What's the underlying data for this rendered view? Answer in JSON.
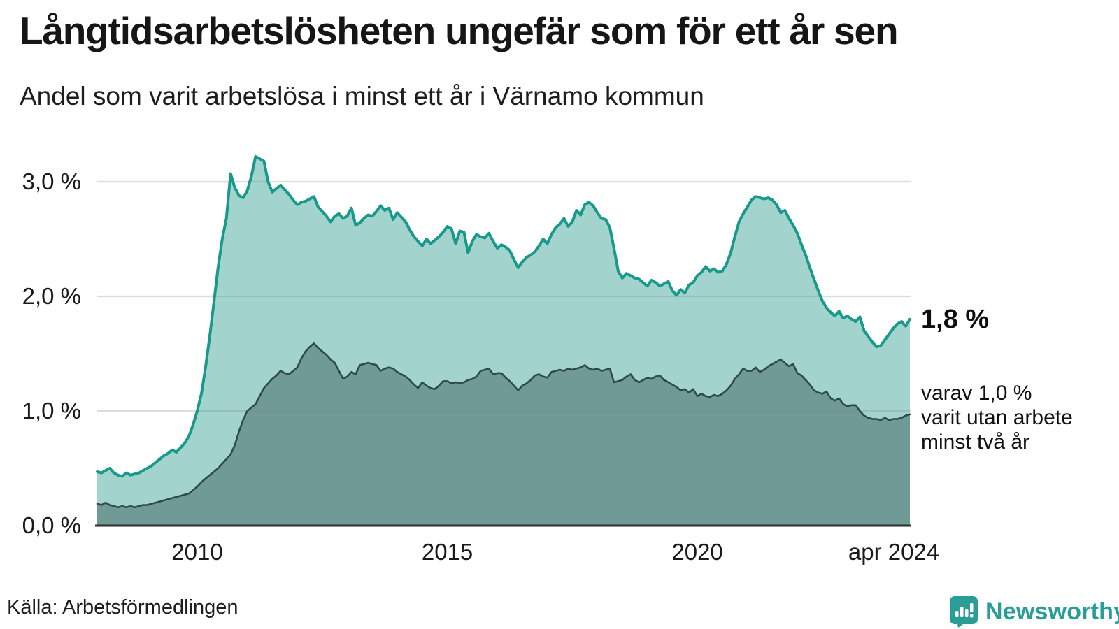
{
  "header": {
    "title": "Långtidsarbetslösheten ungefär som för ett år sen",
    "subtitle": "Andel som varit arbetslösa i minst ett år i Värnamo kommun"
  },
  "chart_data": {
    "type": "area",
    "title": "Långtidsarbetslösheten ungefär som för ett år sen",
    "subtitle": "Andel som varit arbetslösa i minst ett år i Värnamo kommun",
    "x_unit": "month",
    "x_start": "2008-01",
    "x_end": "2024-04",
    "ylim": [
      0,
      3.3
    ],
    "grid": "horizontal",
    "legend": "none",
    "y_ticks": [
      {
        "label": "0,0 %",
        "value": 0
      },
      {
        "label": "1,0 %",
        "value": 1
      },
      {
        "label": "2,0 %",
        "value": 2
      },
      {
        "label": "3,0 %",
        "value": 3
      }
    ],
    "x_ticks": [
      {
        "label": "2010",
        "t": 2010
      },
      {
        "label": "2015",
        "t": 2015
      },
      {
        "label": "2020",
        "t": 2020
      },
      {
        "label": "apr 2024",
        "t": 2024.25
      }
    ],
    "series": [
      {
        "name": "arbetslösa minst ett år",
        "stroke": "#18998b",
        "fill": "#a2d4cd",
        "stroke_width": 4,
        "values": [
          0.47,
          0.46,
          0.48,
          0.5,
          0.46,
          0.44,
          0.43,
          0.46,
          0.44,
          0.45,
          0.46,
          0.48,
          0.5,
          0.52,
          0.55,
          0.58,
          0.61,
          0.63,
          0.66,
          0.64,
          0.68,
          0.72,
          0.78,
          0.88,
          1.0,
          1.15,
          1.38,
          1.65,
          1.95,
          2.25,
          2.5,
          2.68,
          3.07,
          2.95,
          2.88,
          2.86,
          2.92,
          3.05,
          3.22,
          3.2,
          3.18,
          3.0,
          2.91,
          2.94,
          2.97,
          2.93,
          2.89,
          2.84,
          2.8,
          2.82,
          2.83,
          2.85,
          2.87,
          2.78,
          2.74,
          2.7,
          2.65,
          2.7,
          2.72,
          2.68,
          2.7,
          2.77,
          2.62,
          2.64,
          2.68,
          2.71,
          2.7,
          2.74,
          2.79,
          2.75,
          2.77,
          2.67,
          2.73,
          2.69,
          2.65,
          2.58,
          2.52,
          2.48,
          2.44,
          2.5,
          2.46,
          2.49,
          2.52,
          2.56,
          2.61,
          2.59,
          2.46,
          2.57,
          2.56,
          2.38,
          2.48,
          2.54,
          2.52,
          2.51,
          2.55,
          2.48,
          2.42,
          2.45,
          2.43,
          2.4,
          2.32,
          2.25,
          2.3,
          2.34,
          2.36,
          2.39,
          2.44,
          2.5,
          2.46,
          2.54,
          2.6,
          2.63,
          2.68,
          2.61,
          2.65,
          2.75,
          2.71,
          2.8,
          2.82,
          2.79,
          2.73,
          2.68,
          2.67,
          2.6,
          2.42,
          2.22,
          2.16,
          2.2,
          2.18,
          2.16,
          2.15,
          2.12,
          2.09,
          2.14,
          2.12,
          2.09,
          2.11,
          2.13,
          2.05,
          2.01,
          2.06,
          2.03,
          2.1,
          2.12,
          2.18,
          2.21,
          2.26,
          2.22,
          2.24,
          2.21,
          2.22,
          2.28,
          2.38,
          2.52,
          2.65,
          2.72,
          2.78,
          2.84,
          2.87,
          2.86,
          2.85,
          2.86,
          2.84,
          2.8,
          2.73,
          2.75,
          2.68,
          2.62,
          2.55,
          2.45,
          2.36,
          2.25,
          2.15,
          2.05,
          1.96,
          1.9,
          1.86,
          1.83,
          1.87,
          1.81,
          1.83,
          1.8,
          1.78,
          1.82,
          1.7,
          1.65,
          1.6,
          1.56,
          1.57,
          1.62,
          1.67,
          1.72,
          1.76,
          1.78,
          1.74,
          1.8
        ]
      },
      {
        "name": "varav arbetslösa minst två år",
        "stroke": "#2f4b46",
        "fill": "#6f9a95",
        "stroke_width": 2.6,
        "values": [
          0.19,
          0.18,
          0.2,
          0.18,
          0.17,
          0.16,
          0.17,
          0.16,
          0.17,
          0.16,
          0.17,
          0.18,
          0.18,
          0.19,
          0.2,
          0.21,
          0.22,
          0.23,
          0.24,
          0.25,
          0.26,
          0.27,
          0.28,
          0.31,
          0.34,
          0.38,
          0.41,
          0.44,
          0.47,
          0.5,
          0.54,
          0.58,
          0.62,
          0.7,
          0.82,
          0.92,
          1.0,
          1.03,
          1.06,
          1.13,
          1.2,
          1.24,
          1.28,
          1.31,
          1.35,
          1.33,
          1.32,
          1.35,
          1.38,
          1.46,
          1.52,
          1.56,
          1.59,
          1.55,
          1.52,
          1.49,
          1.45,
          1.42,
          1.35,
          1.28,
          1.3,
          1.34,
          1.32,
          1.4,
          1.41,
          1.42,
          1.41,
          1.4,
          1.35,
          1.37,
          1.38,
          1.37,
          1.34,
          1.32,
          1.3,
          1.27,
          1.23,
          1.2,
          1.25,
          1.22,
          1.2,
          1.19,
          1.22,
          1.26,
          1.26,
          1.24,
          1.25,
          1.24,
          1.25,
          1.27,
          1.28,
          1.3,
          1.35,
          1.36,
          1.37,
          1.32,
          1.33,
          1.33,
          1.29,
          1.26,
          1.22,
          1.18,
          1.22,
          1.24,
          1.27,
          1.31,
          1.32,
          1.3,
          1.29,
          1.34,
          1.35,
          1.36,
          1.35,
          1.37,
          1.36,
          1.37,
          1.38,
          1.4,
          1.37,
          1.36,
          1.37,
          1.35,
          1.36,
          1.37,
          1.25,
          1.26,
          1.27,
          1.3,
          1.32,
          1.27,
          1.25,
          1.27,
          1.29,
          1.28,
          1.3,
          1.31,
          1.27,
          1.25,
          1.23,
          1.21,
          1.18,
          1.19,
          1.16,
          1.19,
          1.13,
          1.15,
          1.13,
          1.12,
          1.14,
          1.13,
          1.15,
          1.18,
          1.22,
          1.28,
          1.32,
          1.37,
          1.35,
          1.35,
          1.38,
          1.34,
          1.36,
          1.39,
          1.41,
          1.43,
          1.45,
          1.42,
          1.39,
          1.41,
          1.33,
          1.31,
          1.27,
          1.23,
          1.18,
          1.16,
          1.15,
          1.17,
          1.11,
          1.09,
          1.11,
          1.06,
          1.04,
          1.05,
          1.05,
          1.0,
          0.96,
          0.94,
          0.93,
          0.93,
          0.92,
          0.94,
          0.92,
          0.93,
          0.93,
          0.94,
          0.96,
          0.97
        ]
      }
    ],
    "annotations": {
      "latest_value": "1,8 %",
      "secondary_lines": [
        "varav 1,0 %",
        "varit utan arbete",
        "minst två år"
      ]
    },
    "colors": {
      "line_one_year": "#18998b",
      "fill_one_year": "#a2d4cd",
      "line_two_years": "#2f4b46",
      "fill_two_years": "#6f9a95",
      "axis": "#2b2f2e",
      "gridline": "#dfe3e2"
    }
  },
  "footer": {
    "source": "Källa: Arbetsförmedlingen",
    "brand": "Newsworthy",
    "brand_color": "#2a9d97",
    "brand_icon": "bar-chart-speech-bubble-icon"
  }
}
